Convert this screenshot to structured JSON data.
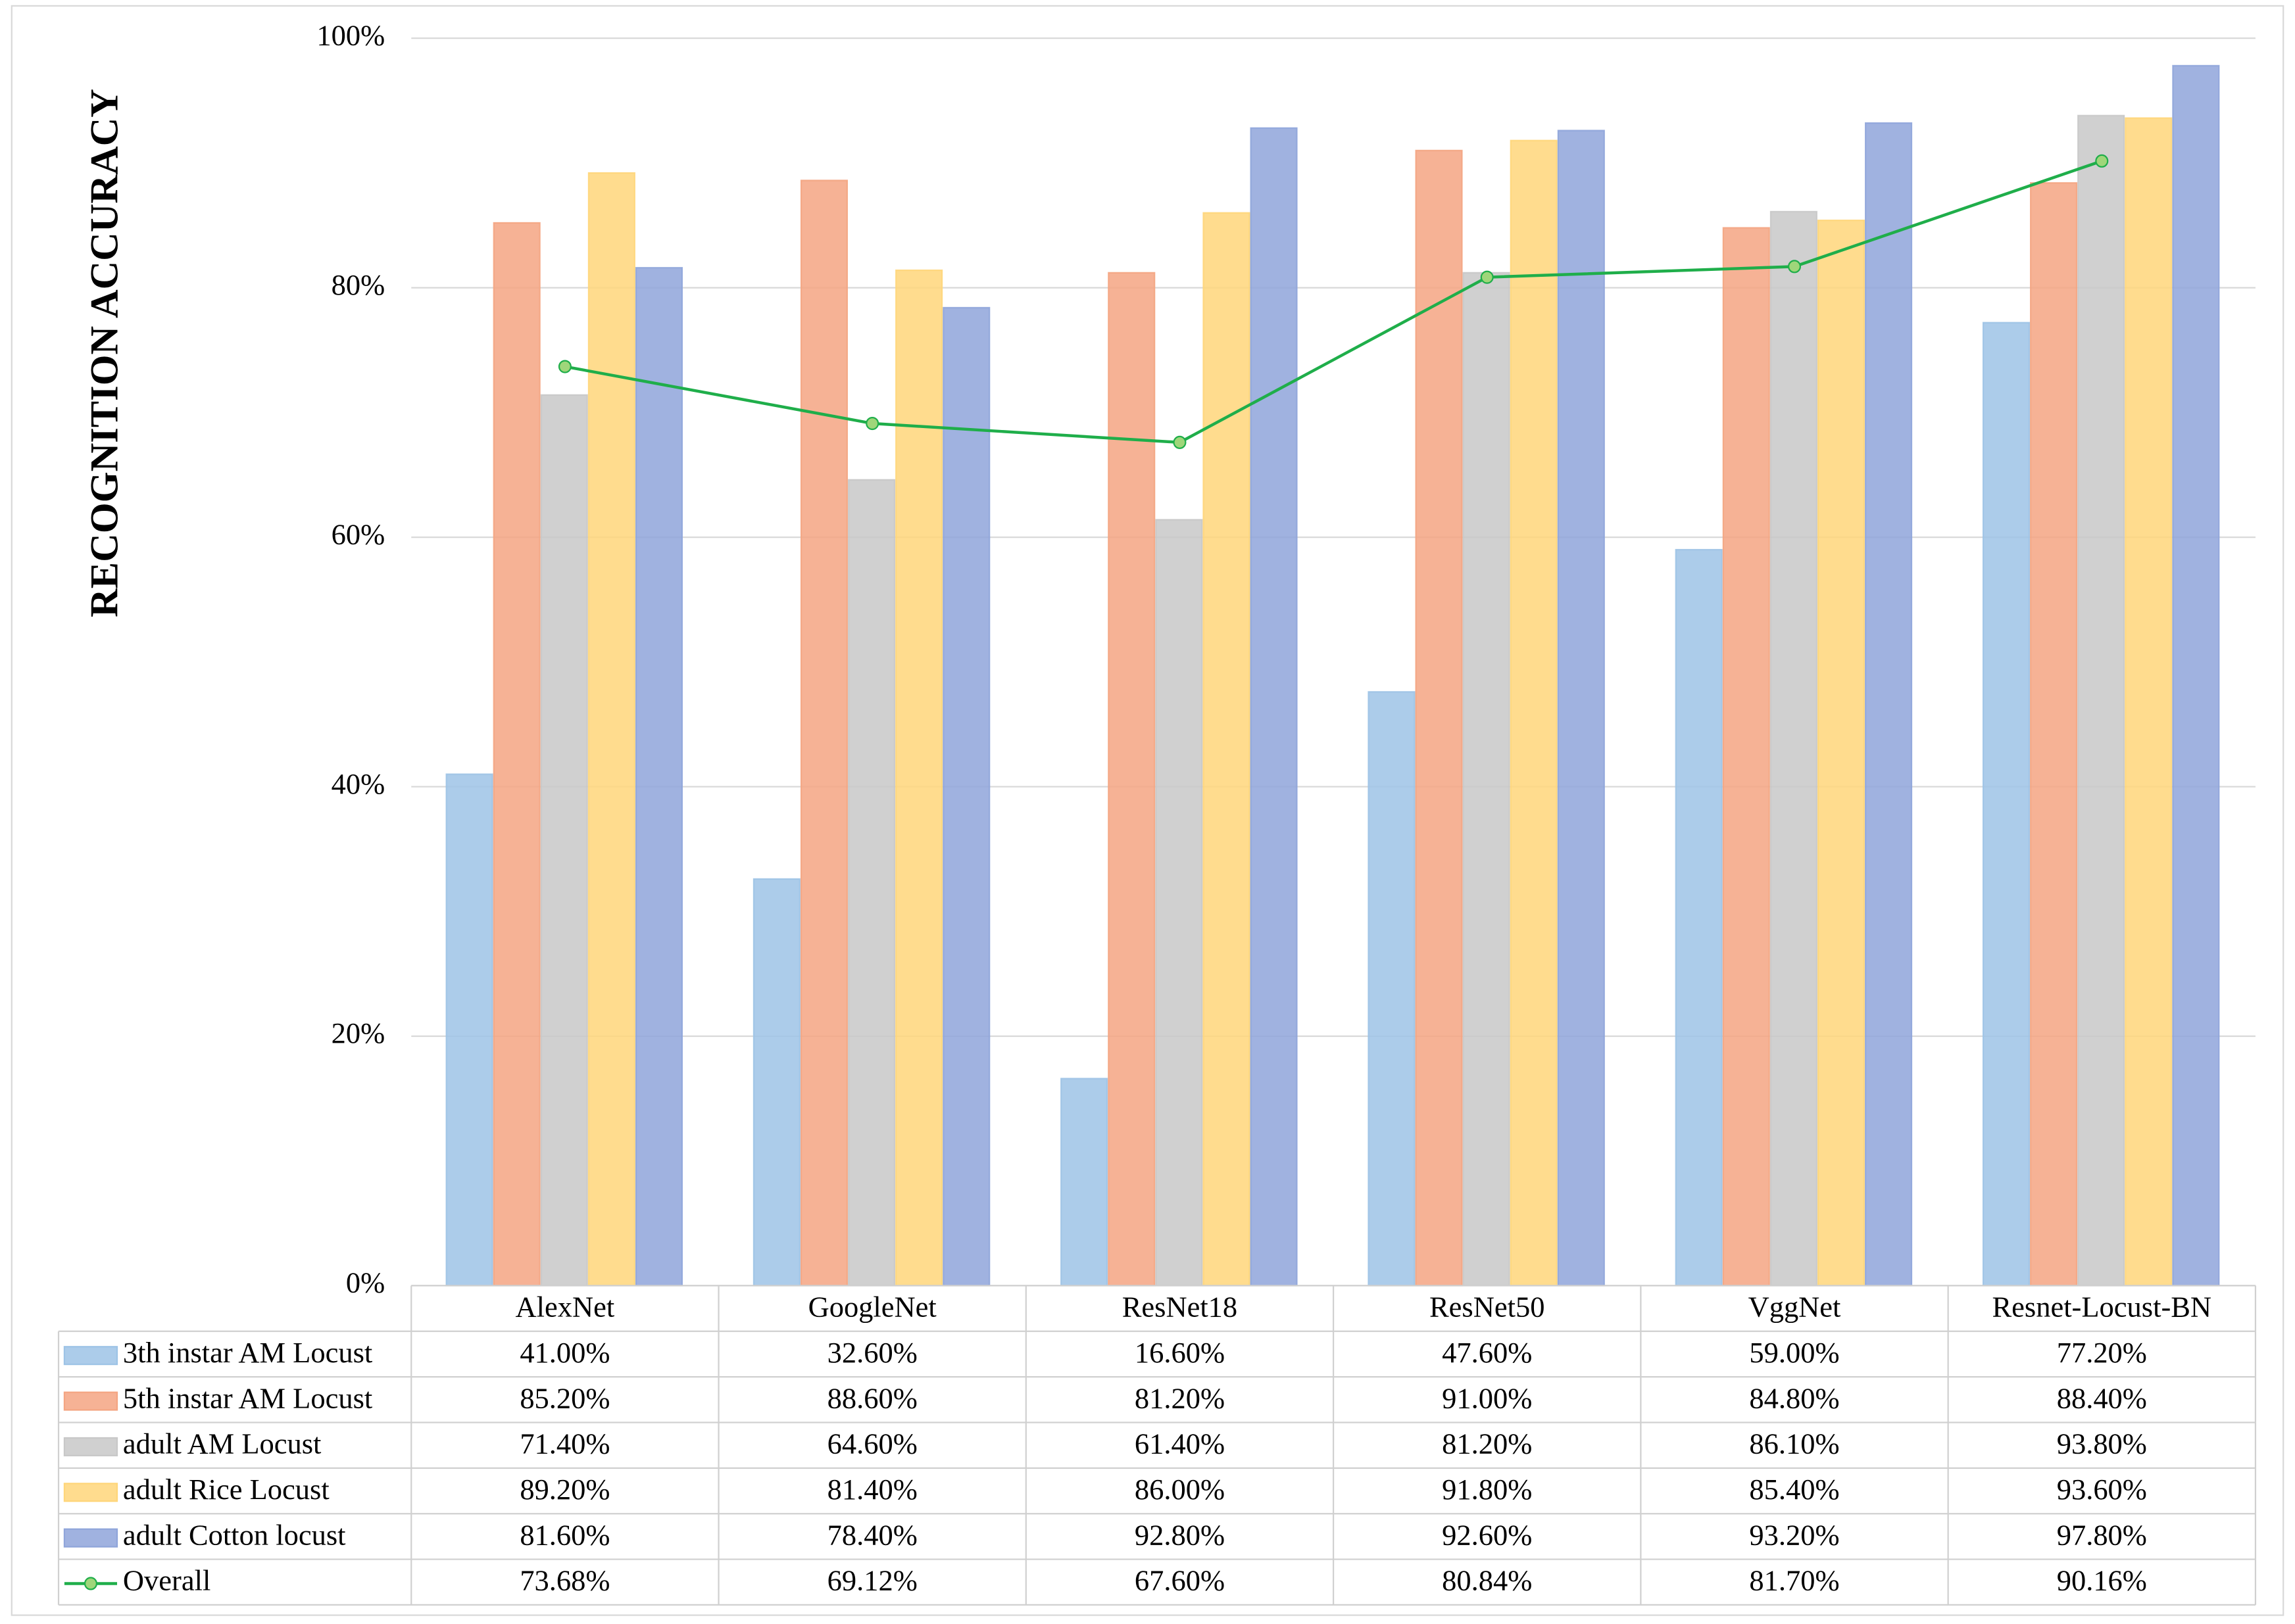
{
  "chart_data": {
    "type": "bar",
    "y_label": "RECOGNITION ACCURACY",
    "categories": [
      "AlexNet",
      "GoogleNet",
      "ResNet18",
      "ResNet50",
      "VggNet",
      "Resnet-Locust-BN"
    ],
    "series": [
      {
        "name": "3th instar AM Locust",
        "color": "#9dc3e6",
        "values": [
          41.0,
          32.6,
          16.6,
          47.6,
          59.0,
          77.2
        ],
        "value_labels": [
          "41.00%",
          "32.60%",
          "16.60%",
          "47.60%",
          "59.00%",
          "77.20%"
        ]
      },
      {
        "name": "5th instar AM Locust",
        "color": "#f4a582",
        "values": [
          85.2,
          88.6,
          81.2,
          91.0,
          84.8,
          88.4
        ],
        "value_labels": [
          "85.20%",
          "88.60%",
          "81.20%",
          "91.00%",
          "84.80%",
          "88.40%"
        ]
      },
      {
        "name": "adult AM Locust",
        "color": "#c8c8c8",
        "values": [
          71.4,
          64.6,
          61.4,
          81.2,
          86.1,
          93.8
        ],
        "value_labels": [
          "71.40%",
          "64.60%",
          "61.40%",
          "81.20%",
          "86.10%",
          "93.80%"
        ]
      },
      {
        "name": "adult Rice Locust",
        "color": "#ffd67a",
        "values": [
          89.2,
          81.4,
          86.0,
          91.8,
          85.4,
          93.6
        ],
        "value_labels": [
          "89.20%",
          "81.40%",
          "86.00%",
          "91.80%",
          "85.40%",
          "93.60%"
        ]
      },
      {
        "name": "adult Cotton locust",
        "color": "#8fa5da",
        "values": [
          81.6,
          78.4,
          92.8,
          92.6,
          93.2,
          97.8
        ],
        "value_labels": [
          "81.60%",
          "78.40%",
          "92.80%",
          "92.60%",
          "93.20%",
          "97.80%"
        ]
      },
      {
        "name": "Overall",
        "color": "#1fae4a",
        "type": "line",
        "values": [
          73.68,
          69.12,
          67.6,
          80.84,
          81.7,
          90.16
        ],
        "value_labels": [
          "73.68%",
          "69.12%",
          "67.60%",
          "80.84%",
          "81.70%",
          "90.16%"
        ]
      }
    ],
    "ylim": [
      0,
      100
    ],
    "yticks": [
      {
        "value": 0,
        "label": "0%"
      },
      {
        "value": 20,
        "label": "20%"
      },
      {
        "value": 40,
        "label": "40%"
      },
      {
        "value": 60,
        "label": "60%"
      },
      {
        "value": 80,
        "label": "80%"
      },
      {
        "value": 100,
        "label": "100%"
      }
    ],
    "grid": true
  }
}
